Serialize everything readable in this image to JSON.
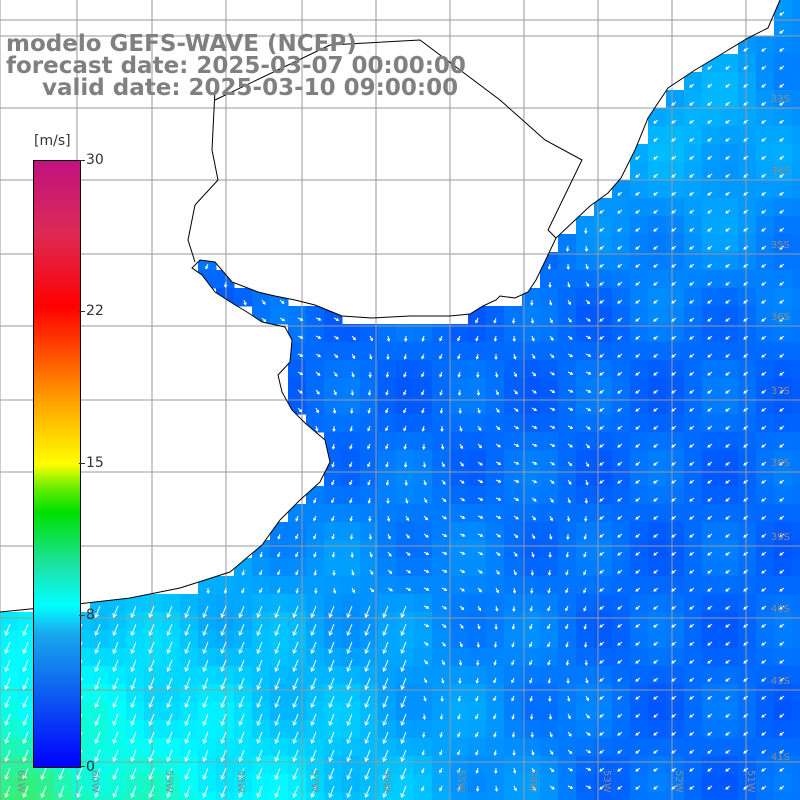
{
  "title": {
    "line1": "modelo GEFS-WAVE (NCEP)",
    "line2": "forecast date: 2025-03-07 00:00:00",
    "line3": "valid date: 2025-03-10 09:00:00"
  },
  "colorbar": {
    "unit": "[m/s]",
    "min": 0,
    "max": 30,
    "ticks": [
      "30",
      "22",
      "15",
      "8",
      "0"
    ],
    "colors": [
      "#0000ff",
      "#19a8ee",
      "#00ffff",
      "#00e000",
      "#ffff00",
      "#ffa500",
      "#ff0000",
      "#c01280"
    ]
  },
  "map": {
    "lat_labels": [
      "33S",
      "34S",
      "35S",
      "36S",
      "37S",
      "38S",
      "39S",
      "40S",
      "41S"
    ],
    "lon_labels": [
      "61W",
      "60W",
      "59W",
      "58W",
      "57W",
      "56W",
      "55W",
      "54W",
      "53W",
      "52W",
      "51W",
      "50W"
    ],
    "land_color": "#ffffff",
    "coast_color": "#000000",
    "grid_color": "#9a9a9a",
    "arrow_color": "#ffffff",
    "field_summary": {
      "weak_wind_color": "#0000ff",
      "moderate_wind_color": "#00ffff",
      "strong_wind_color": "#66e000",
      "strong_wind_region": "southwest"
    }
  }
}
